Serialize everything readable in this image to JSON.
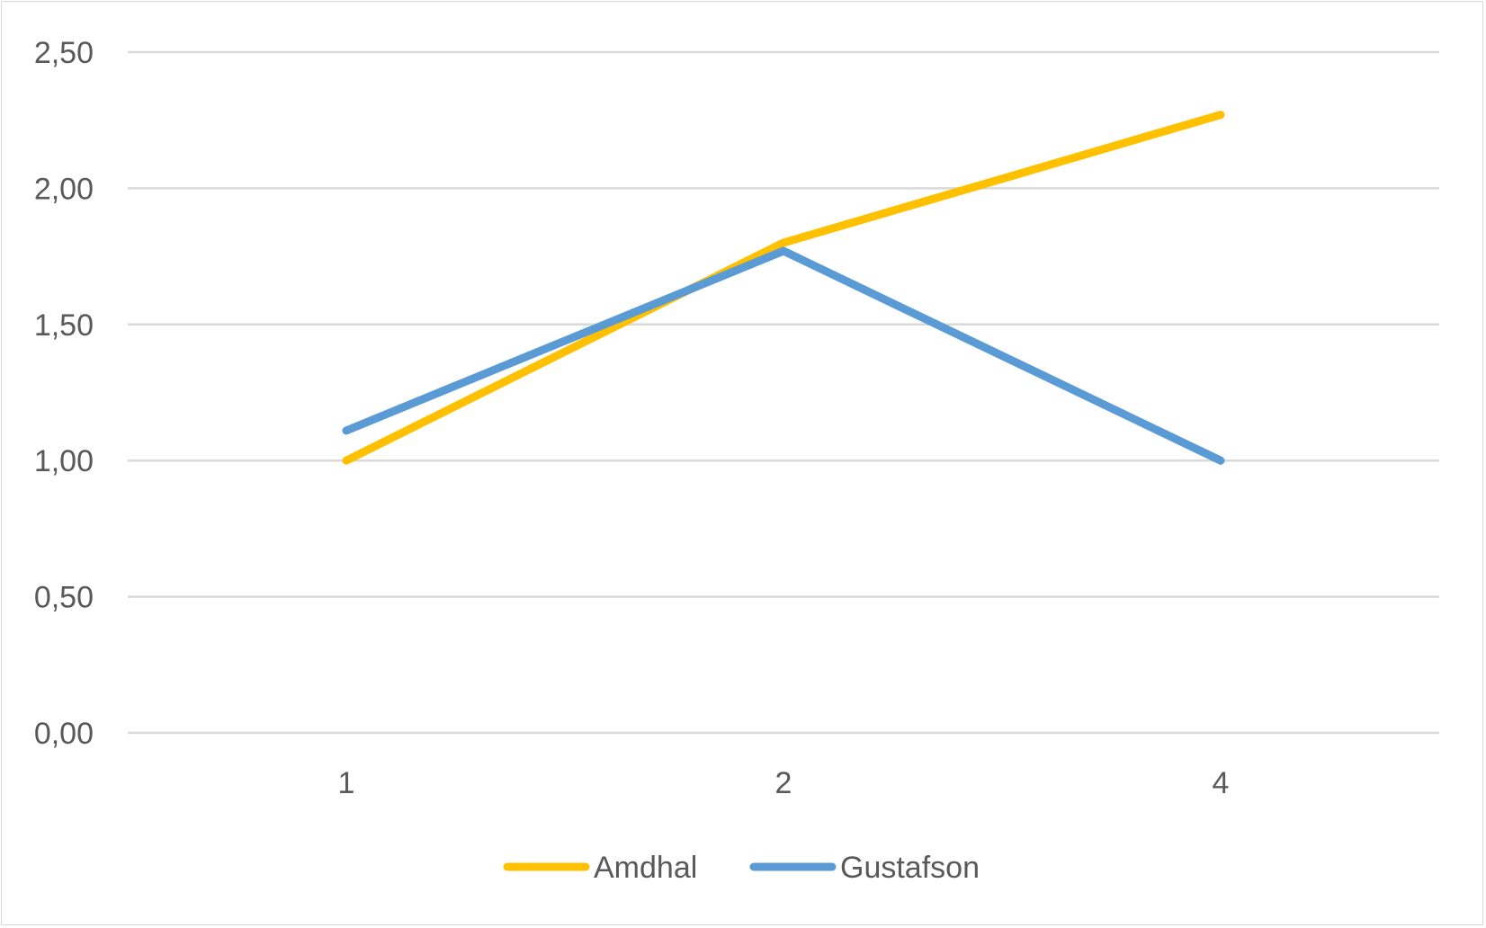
{
  "chart_data": {
    "type": "line",
    "title": "",
    "xlabel": "",
    "ylabel": "",
    "categories": [
      "1",
      "2",
      "4"
    ],
    "ylim": [
      0,
      2.5
    ],
    "yticks": [
      "0,00",
      "0,50",
      "1,00",
      "1,50",
      "2,00",
      "2,50"
    ],
    "grid": true,
    "legend_position": "bottom",
    "series": [
      {
        "name": "Amdhal",
        "values": [
          1.0,
          1.8,
          2.27
        ],
        "color": "#FFC000"
      },
      {
        "name": "Gustafson",
        "values": [
          1.11,
          1.77,
          1.0
        ],
        "color": "#5B9BD5"
      }
    ]
  }
}
